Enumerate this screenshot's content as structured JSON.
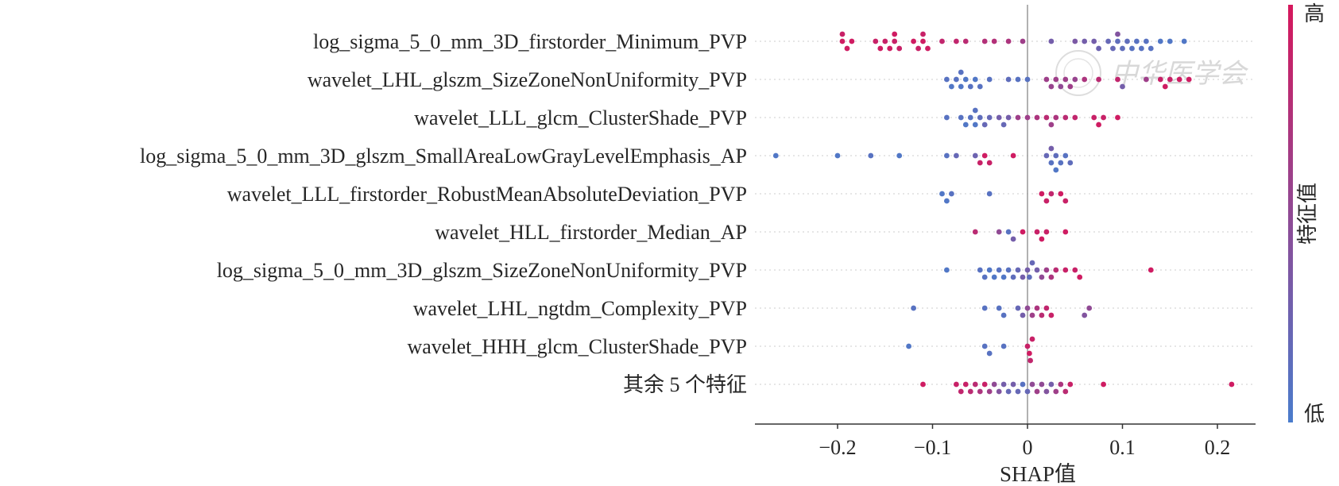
{
  "chart_data": {
    "type": "scatter",
    "xlabel": "SHAP值",
    "xlim": [
      -0.285,
      0.24
    ],
    "xticks": [
      {
        "value": -0.2,
        "label": "−0.2"
      },
      {
        "value": -0.1,
        "label": "−0.1"
      },
      {
        "value": 0,
        "label": "0"
      },
      {
        "value": 0.1,
        "label": "0.1"
      },
      {
        "value": 0.2,
        "label": "0.2"
      }
    ],
    "colorbar": {
      "title": "特征值",
      "high_label": "高",
      "low_label": "低",
      "high_color": "#d6175c",
      "low_color": "#4a7ccc"
    },
    "features": [
      {
        "name": "log_sigma_5_0_mm_3D_firstorder_Minimum_PVP",
        "points": [
          [
            -0.195,
            0.95
          ],
          [
            -0.19,
            0.95
          ],
          [
            -0.195,
            0.9
          ],
          [
            -0.185,
            0.95
          ],
          [
            -0.16,
            0.9
          ],
          [
            -0.155,
            0.95
          ],
          [
            -0.15,
            0.9
          ],
          [
            -0.145,
            0.95
          ],
          [
            -0.14,
            0.9
          ],
          [
            -0.14,
            0.95
          ],
          [
            -0.135,
            0.9
          ],
          [
            -0.12,
            0.95
          ],
          [
            -0.115,
            0.9
          ],
          [
            -0.11,
            0.95
          ],
          [
            -0.11,
            0.9
          ],
          [
            -0.105,
            0.95
          ],
          [
            -0.09,
            0.85
          ],
          [
            -0.075,
            0.85
          ],
          [
            -0.065,
            0.8
          ],
          [
            -0.045,
            0.75
          ],
          [
            -0.035,
            0.75
          ],
          [
            -0.02,
            0.7
          ],
          [
            -0.005,
            0.6
          ],
          [
            0.025,
            0.3
          ],
          [
            0.05,
            0.35
          ],
          [
            0.06,
            0.3
          ],
          [
            0.07,
            0.3
          ],
          [
            0.075,
            0.25
          ],
          [
            0.085,
            0.2
          ],
          [
            0.09,
            0.2
          ],
          [
            0.095,
            0.15
          ],
          [
            0.1,
            0.15
          ],
          [
            0.105,
            0.15
          ],
          [
            0.11,
            0.1
          ],
          [
            0.115,
            0.1
          ],
          [
            0.12,
            0.1
          ],
          [
            0.125,
            0.1
          ],
          [
            0.13,
            0.1
          ],
          [
            0.14,
            0.05
          ],
          [
            0.15,
            0.05
          ],
          [
            0.165,
            0.05
          ],
          [
            0.095,
            0.4
          ]
        ]
      },
      {
        "name": "wavelet_LHL_glszm_SizeZoneNonUniformity_PVP",
        "points": [
          [
            -0.085,
            0.1
          ],
          [
            -0.08,
            0.05
          ],
          [
            -0.075,
            0.1
          ],
          [
            -0.07,
            0.05
          ],
          [
            -0.07,
            0.1
          ],
          [
            -0.065,
            0.05
          ],
          [
            -0.06,
            0.1
          ],
          [
            -0.055,
            0.05
          ],
          [
            -0.05,
            0.1
          ],
          [
            -0.04,
            0.1
          ],
          [
            -0.02,
            0.15
          ],
          [
            -0.01,
            0.1
          ],
          [
            0.0,
            0.1
          ],
          [
            0.02,
            0.6
          ],
          [
            0.025,
            0.55
          ],
          [
            0.03,
            0.6
          ],
          [
            0.035,
            0.5
          ],
          [
            0.04,
            0.6
          ],
          [
            0.045,
            0.6
          ],
          [
            0.05,
            0.55
          ],
          [
            0.06,
            0.7
          ],
          [
            0.075,
            0.8
          ],
          [
            0.095,
            0.85
          ],
          [
            0.14,
            0.9
          ],
          [
            0.145,
            0.95
          ],
          [
            0.15,
            0.9
          ],
          [
            0.16,
            0.95
          ],
          [
            0.17,
            0.95
          ],
          [
            0.1,
            0.3
          ],
          [
            0.125,
            0.6
          ]
        ]
      },
      {
        "name": "wavelet_LLL_glcm_ClusterShade_PVP",
        "points": [
          [
            -0.085,
            0.1
          ],
          [
            -0.07,
            0.1
          ],
          [
            -0.065,
            0.05
          ],
          [
            -0.06,
            0.1
          ],
          [
            -0.055,
            0.05
          ],
          [
            -0.055,
            0.1
          ],
          [
            -0.05,
            0.15
          ],
          [
            -0.045,
            0.2
          ],
          [
            -0.04,
            0.2
          ],
          [
            -0.03,
            0.3
          ],
          [
            -0.025,
            0.2
          ],
          [
            -0.02,
            0.3
          ],
          [
            -0.01,
            0.6
          ],
          [
            0.0,
            0.6
          ],
          [
            0.01,
            0.7
          ],
          [
            0.02,
            0.8
          ],
          [
            0.025,
            0.6
          ],
          [
            0.03,
            0.7
          ],
          [
            0.04,
            0.8
          ],
          [
            0.05,
            0.85
          ],
          [
            0.07,
            0.9
          ],
          [
            0.075,
            0.95
          ],
          [
            0.08,
            0.9
          ],
          [
            0.095,
            0.95
          ]
        ]
      },
      {
        "name": "log_sigma_5_0_mm_3D_glszm_SmallAreaLowGrayLevelEmphasis_AP",
        "points": [
          [
            -0.265,
            0.05
          ],
          [
            -0.2,
            0.05
          ],
          [
            -0.165,
            0.1
          ],
          [
            -0.135,
            0.05
          ],
          [
            -0.085,
            0.1
          ],
          [
            -0.075,
            0.2
          ],
          [
            -0.055,
            0.25
          ],
          [
            -0.05,
            0.9
          ],
          [
            -0.045,
            0.95
          ],
          [
            -0.04,
            0.9
          ],
          [
            -0.015,
            0.95
          ],
          [
            0.02,
            0.2
          ],
          [
            0.025,
            0.1
          ],
          [
            0.03,
            0.15
          ],
          [
            0.035,
            0.1
          ],
          [
            0.04,
            0.1
          ],
          [
            0.045,
            0.15
          ],
          [
            0.025,
            0.3
          ],
          [
            0.03,
            0.05
          ]
        ]
      },
      {
        "name": "wavelet_LLL_firstorder_RobustMeanAbsoluteDeviation_PVP",
        "points": [
          [
            -0.09,
            0.05
          ],
          [
            -0.085,
            0.05
          ],
          [
            -0.08,
            0.1
          ],
          [
            -0.04,
            0.1
          ],
          [
            0.015,
            0.95
          ],
          [
            0.02,
            0.9
          ],
          [
            0.025,
            0.85
          ],
          [
            0.035,
            0.95
          ],
          [
            0.04,
            0.9
          ]
        ]
      },
      {
        "name": "wavelet_HLL_firstorder_Median_AP",
        "points": [
          [
            -0.055,
            0.8
          ],
          [
            -0.03,
            0.5
          ],
          [
            -0.02,
            0.1
          ],
          [
            -0.015,
            0.3
          ],
          [
            -0.005,
            0.95
          ],
          [
            0.01,
            0.9
          ],
          [
            0.015,
            0.95
          ],
          [
            0.02,
            0.9
          ],
          [
            0.04,
            0.95
          ]
        ]
      },
      {
        "name": "log_sigma_5_0_mm_3D_glszm_SizeZoneNonUniformity_PVP",
        "points": [
          [
            -0.085,
            0.05
          ],
          [
            -0.05,
            0.1
          ],
          [
            -0.045,
            0.1
          ],
          [
            -0.04,
            0.05
          ],
          [
            -0.035,
            0.05
          ],
          [
            -0.03,
            0.1
          ],
          [
            -0.025,
            0.05
          ],
          [
            -0.02,
            0.1
          ],
          [
            -0.015,
            0.15
          ],
          [
            -0.01,
            0.2
          ],
          [
            -0.005,
            0.3
          ],
          [
            0.0,
            0.3
          ],
          [
            0.002,
            0.15
          ],
          [
            0.005,
            0.2
          ],
          [
            0.01,
            0.3
          ],
          [
            0.015,
            0.5
          ],
          [
            0.02,
            0.6
          ],
          [
            0.025,
            0.7
          ],
          [
            0.03,
            0.8
          ],
          [
            0.04,
            0.9
          ],
          [
            0.05,
            0.9
          ],
          [
            0.055,
            0.95
          ],
          [
            0.13,
            0.95
          ]
        ]
      },
      {
        "name": "wavelet_LHL_ngtdm_Complexity_PVP",
        "points": [
          [
            -0.12,
            0.1
          ],
          [
            -0.045,
            0.1
          ],
          [
            -0.03,
            0.1
          ],
          [
            -0.025,
            0.1
          ],
          [
            -0.01,
            0.2
          ],
          [
            -0.005,
            0.3
          ],
          [
            0.0,
            0.5
          ],
          [
            0.005,
            0.6
          ],
          [
            0.01,
            0.7
          ],
          [
            0.015,
            0.8
          ],
          [
            0.02,
            0.85
          ],
          [
            0.025,
            0.9
          ],
          [
            0.065,
            0.5
          ],
          [
            0.06,
            0.4
          ]
        ]
      },
      {
        "name": "wavelet_HHH_glcm_ClusterShade_PVP",
        "points": [
          [
            -0.125,
            0.05
          ],
          [
            -0.045,
            0.1
          ],
          [
            -0.04,
            0.1
          ],
          [
            -0.025,
            0.1
          ],
          [
            0.0,
            0.9
          ],
          [
            0.002,
            0.95
          ],
          [
            0.005,
            0.9
          ],
          [
            0.003,
            0.85
          ]
        ]
      },
      {
        "name": "其余 5 个特征",
        "points": [
          [
            -0.11,
            0.95
          ],
          [
            -0.075,
            0.9
          ],
          [
            -0.07,
            0.85
          ],
          [
            -0.065,
            0.9
          ],
          [
            -0.06,
            0.8
          ],
          [
            -0.055,
            0.8
          ],
          [
            -0.05,
            0.7
          ],
          [
            -0.045,
            0.9
          ],
          [
            -0.04,
            0.6
          ],
          [
            -0.035,
            0.5
          ],
          [
            -0.03,
            0.4
          ],
          [
            -0.025,
            0.3
          ],
          [
            -0.02,
            0.2
          ],
          [
            -0.015,
            0.3
          ],
          [
            -0.01,
            0.2
          ],
          [
            -0.005,
            0.1
          ],
          [
            0.0,
            0.2
          ],
          [
            0.005,
            0.5
          ],
          [
            0.01,
            0.6
          ],
          [
            0.015,
            0.5
          ],
          [
            0.02,
            0.4
          ],
          [
            0.025,
            0.3
          ],
          [
            0.03,
            0.6
          ],
          [
            0.035,
            0.7
          ],
          [
            0.04,
            0.8
          ],
          [
            0.045,
            0.9
          ],
          [
            0.08,
            0.95
          ],
          [
            0.215,
            0.95
          ]
        ]
      }
    ]
  },
  "watermark": {
    "text": "中华医学会"
  }
}
